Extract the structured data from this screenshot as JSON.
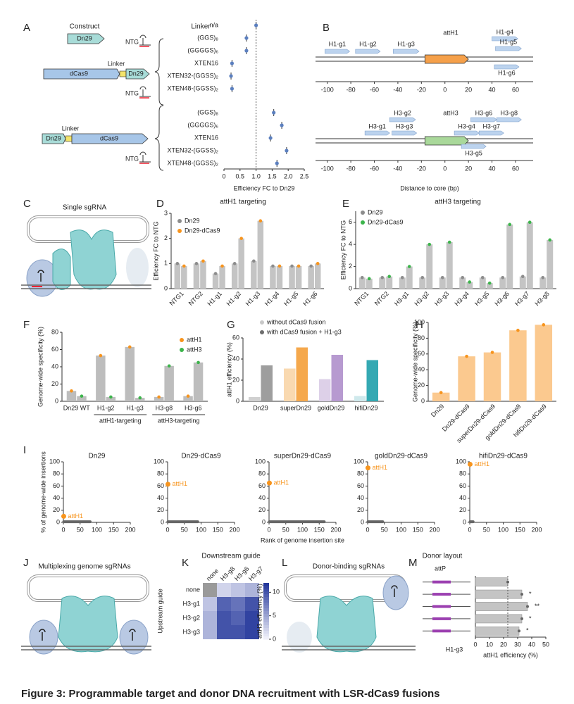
{
  "caption": "Figure 3: Programmable target and donor DNA recruitment with LSR-dCas9 fusions",
  "panel_labels": [
    "A",
    "B",
    "C",
    "D",
    "E",
    "F",
    "G",
    "H",
    "I",
    "J",
    "K",
    "L",
    "M"
  ],
  "diagrams": {
    "A": {
      "construct": "Construct",
      "linker_header": "Linker",
      "dn29": "Dn29",
      "dcas9": "dCas9",
      "linker": "Linker",
      "ntg": "NTG"
    },
    "C": {
      "title": "Single sgRNA"
    },
    "J": {
      "title": "Multiplexing genome sgRNAs"
    },
    "L": {
      "title": "Donor-binding sgRNAs"
    }
  },
  "chart_data": [
    {
      "type": "dot",
      "categories": [
        "n/a",
        "(GGS)₈",
        "(GGGGS)₆",
        "XTEN16",
        "XTEN32-(GGSS)₂",
        "XTEN48-(GGSS)₂",
        "(GGS)₈",
        "(GGGGS)₆",
        "XTEN16",
        "XTEN32-(GGSS)₂",
        "XTEN48-(GGSS)₂"
      ],
      "values": [
        1.0,
        0.7,
        0.7,
        0.25,
        0.22,
        0.25,
        1.55,
        1.8,
        1.45,
        1.95,
        1.65
      ],
      "color": "#5b7fbf",
      "reference": 1,
      "xlim": [
        0,
        2.5
      ],
      "xticks": [
        0,
        0.5,
        {
          "value": 1,
          "label": "1.0"
        },
        {
          "value": 1.5,
          "label": "1.5"
        },
        {
          "value": 2,
          "label": "2.0"
        },
        {
          "value": 2.5,
          "label": "2.5"
        }
      ],
      "xlabel": "Efficiency FC to Dn29"
    },
    {
      "type": "guide_map",
      "title": "attH1",
      "core": [
        -17,
        20
      ],
      "core_color": "#f5a04a",
      "guides": [
        {
          "name": "H1-g1",
          "start": -102,
          "end": -81
        },
        {
          "name": "H1-g2",
          "start": -76,
          "end": -55
        },
        {
          "name": "H1-g3",
          "start": -44,
          "end": -22
        },
        {
          "name": "H1-g4",
          "start": 40,
          "end": 62
        },
        {
          "name": "H1-g5",
          "start": 43,
          "end": 65
        },
        {
          "name": "H1-g6",
          "start": 42,
          "end": 63
        }
      ],
      "xlim": [
        -110,
        75
      ],
      "xticks": [
        -100,
        -80,
        -60,
        -40,
        -20,
        0,
        20,
        40,
        60
      ]
    },
    {
      "type": "guide_map",
      "title": "attH3",
      "core": [
        -17,
        20
      ],
      "core_color": "#a9d89a",
      "guides": [
        {
          "name": "H3-g1",
          "start": -68,
          "end": -47
        },
        {
          "name": "H3-g2",
          "start": -47,
          "end": -25
        },
        {
          "name": "H3-g3",
          "start": -45,
          "end": -24
        },
        {
          "name": "H3-g4",
          "start": 8,
          "end": 29
        },
        {
          "name": "H3-g5",
          "start": 14,
          "end": 35
        },
        {
          "name": "H3-g6",
          "start": 22,
          "end": 44
        },
        {
          "name": "H3-g7",
          "start": 29,
          "end": 50
        },
        {
          "name": "H3-g8",
          "start": 44,
          "end": 65
        }
      ],
      "xlim": [
        -110,
        75
      ],
      "xticks": [
        -100,
        -80,
        -60,
        -40,
        -20,
        0,
        20,
        40,
        60
      ],
      "xlabel": "Distance to core (bp)"
    },
    {
      "type": "bar",
      "title": "attH1 targeting",
      "ylabel": "Efficiency FC to NTG",
      "legend": "top-left",
      "bar_fill": "#c4c4c4",
      "categories": [
        "NTG1",
        "NTG2",
        "H1-g1",
        "H1-g2",
        "H1-g3",
        "H1-g4",
        "H1-g5",
        "H1-g6"
      ],
      "series": [
        {
          "name": "Dn29",
          "color": "#8c8c8c",
          "values": [
            1.0,
            1.0,
            0.6,
            1.0,
            1.1,
            0.9,
            0.9,
            0.9
          ]
        },
        {
          "name": "Dn29-dCas9",
          "color": "#f7941d",
          "values": [
            0.9,
            1.1,
            0.9,
            2.0,
            2.7,
            0.9,
            0.9,
            1.0
          ]
        }
      ],
      "ylim": [
        0,
        3
      ],
      "yticks": [
        0,
        1,
        2,
        3
      ]
    },
    {
      "type": "bar",
      "title": "attH3 targeting",
      "ylabel": "Efficiency FC to NTG",
      "legend": "top-left",
      "bar_fill": "#c4c4c4",
      "categories": [
        "NTG1",
        "NTG2",
        "H3-g1",
        "H3-g2",
        "H3-g3",
        "H3-g4",
        "H3-g5",
        "H3-g6",
        "H3-g7",
        "H3-g8"
      ],
      "series": [
        {
          "name": "Dn29",
          "color": "#8c8c8c",
          "values": [
            1.0,
            1.0,
            1.0,
            1.0,
            1.0,
            1.0,
            1.0,
            1.0,
            1.1,
            1.0
          ]
        },
        {
          "name": "Dn29-dCas9",
          "color": "#3cb44b",
          "values": [
            0.9,
            1.1,
            2.0,
            4.0,
            4.2,
            0.6,
            0.5,
            5.8,
            6.0,
            4.4
          ]
        }
      ],
      "ylim": [
        0,
        7
      ],
      "yticks": [
        0,
        2,
        4,
        6
      ]
    },
    {
      "type": "bar",
      "ylabel": "Genome-wide specificity (%)",
      "legend": "top-right",
      "bar_fill": "#bdbdbd",
      "categories": [
        "Dn29 WT",
        "H1-g2",
        "H1-g3",
        "H3-g8",
        "H3-g6"
      ],
      "groups": [
        {
          "label": "attH1-targeting",
          "from": 1,
          "to": 2
        },
        {
          "label": "attH3-targeting",
          "from": 3,
          "to": 4
        }
      ],
      "series": [
        {
          "name": "attH1",
          "color": "#f7941d",
          "values": [
            12,
            53,
            63,
            5,
            6
          ]
        },
        {
          "name": "attH3",
          "color": "#3cb44b",
          "values": [
            6,
            5,
            4,
            41,
            45
          ]
        }
      ],
      "ylim": [
        0,
        80
      ],
      "yticks": [
        0,
        20,
        40,
        60,
        80
      ]
    },
    {
      "type": "bar",
      "ylabel": "attH1 efficiency (%)",
      "legend": "top-left",
      "categories": [
        "Dn29",
        "superDn29",
        "goldDn29",
        "hifiDn29"
      ],
      "series": [
        {
          "name": "without dCas9 fusion",
          "color": "#c8c8c8",
          "values": [
            4,
            31,
            21,
            5
          ],
          "bar_colors": [
            "#d0d0d0",
            "#f9d9b0",
            "#ddd0e8",
            "#cfe9ec"
          ]
        },
        {
          "name": "with dCas9 fusion + H1-g3",
          "color": "#6d6d6d",
          "values": [
            34,
            51,
            44,
            39
          ],
          "bar_colors": [
            "#9e9e9e",
            "#f5a84c",
            "#b79ad0",
            "#34a9b3"
          ]
        }
      ],
      "ylim": [
        0,
        60
      ],
      "yticks": [
        0,
        20,
        40,
        60
      ]
    },
    {
      "type": "bar",
      "ylabel": "Genome-wide specificity (%)",
      "bar_fill": "#fbc98f",
      "categories": [
        "Dn29",
        "Dn29-dCas9",
        "superDn29-dCas9",
        "goldDn29-dCas9",
        "hifiDn29-dCas9"
      ],
      "series": [
        {
          "name": "Dn29",
          "color": "#f7941d",
          "values": [
            11,
            57,
            62,
            90,
            97
          ]
        }
      ],
      "ylim": [
        0,
        100
      ],
      "yticks": [
        0,
        20,
        40,
        60,
        80,
        100
      ]
    },
    {
      "type": "rank",
      "title": "Dn29",
      "ylabel": "% of genome-wide insertions",
      "annotation": "attH1",
      "color": "#f7941d",
      "x": [
        1
      ],
      "values": [
        10
      ],
      "other_sites_rank_max": 80,
      "other_sites_pct": 1,
      "xlim": [
        0,
        200
      ],
      "xticks": [
        0,
        50,
        100,
        150,
        200
      ],
      "ylim": [
        0,
        100
      ],
      "yticks": [
        0,
        20,
        40,
        60,
        80,
        100
      ]
    },
    {
      "type": "rank",
      "title": "Dn29-dCas9",
      "annotation": "attH1",
      "color": "#f7941d",
      "x": [
        1
      ],
      "values": [
        63
      ],
      "other_sites_rank_max": 90,
      "other_sites_pct": 1,
      "xlim": [
        0,
        200
      ],
      "xticks": [
        0,
        50,
        100,
        150,
        200
      ],
      "ylim": [
        0,
        100
      ],
      "yticks": [
        0,
        20,
        40,
        60,
        80,
        100
      ]
    },
    {
      "type": "rank",
      "title": "superDn29-dCas9",
      "xlabel": "Rank of genome insertion site",
      "annotation": "attH1",
      "color": "#f7941d",
      "x": [
        1
      ],
      "values": [
        65
      ],
      "other_sites_rank_max": 165,
      "other_sites_pct": 1,
      "xlim": [
        0,
        200
      ],
      "xticks": [
        0,
        50,
        100,
        150,
        200
      ],
      "ylim": [
        0,
        100
      ],
      "yticks": [
        0,
        20,
        40,
        60,
        80,
        100
      ]
    },
    {
      "type": "rank",
      "title": "goldDn29-dCas9",
      "annotation": "attH1",
      "color": "#f7941d",
      "x": [
        1
      ],
      "values": [
        90
      ],
      "other_sites_rank_max": 45,
      "other_sites_pct": 1,
      "xlim": [
        0,
        200
      ],
      "xticks": [
        0,
        50,
        100,
        150,
        200
      ],
      "ylim": [
        0,
        100
      ],
      "yticks": [
        0,
        20,
        40,
        60,
        80,
        100
      ]
    },
    {
      "type": "rank",
      "title": "hifiDn29-dCas9",
      "annotation": "attH1",
      "color": "#f7941d",
      "x": [
        1
      ],
      "values": [
        96
      ],
      "other_sites_rank_max": 10,
      "other_sites_pct": 1,
      "xlim": [
        0,
        200
      ],
      "xticks": [
        0,
        50,
        100,
        150,
        200
      ],
      "ylim": [
        0,
        100
      ],
      "yticks": [
        0,
        20,
        40,
        60,
        80,
        100
      ]
    },
    {
      "type": "heatmap",
      "title": "Downstream guide",
      "ylabel": "Upstream guide",
      "colorbar_label": "attH3 efficiency (%)",
      "columns": [
        "none",
        "H3-g8",
        "H3-g6",
        "H3-g7"
      ],
      "rows": [
        "none",
        "H3-g1",
        "H3-g2",
        "H3-g3"
      ],
      "values": [
        [
          null,
          2,
          3,
          4
        ],
        [
          3,
          9,
          8,
          10
        ],
        [
          4,
          10,
          9,
          11
        ],
        [
          4,
          10,
          10,
          11
        ]
      ],
      "clim": [
        0,
        12
      ],
      "cticks": [
        0,
        5,
        10
      ],
      "color": "#1f3399"
    },
    {
      "type": "hbar",
      "title": "Donor layout",
      "attp": "attP",
      "guide": "H1-g3",
      "xlabel": "attH1 efficiency (%)",
      "values": [
        23,
        33,
        37,
        33,
        31
      ],
      "color": "#c4c4c4",
      "reference": 23,
      "annotations": [
        {
          "index": 1,
          "text": "*"
        },
        {
          "index": 2,
          "text": "**"
        },
        {
          "index": 3,
          "text": "*"
        },
        {
          "index": 4,
          "text": "*"
        }
      ],
      "xlim": [
        0,
        50
      ],
      "xticks": [
        0,
        10,
        20,
        30,
        40,
        50
      ]
    }
  ]
}
